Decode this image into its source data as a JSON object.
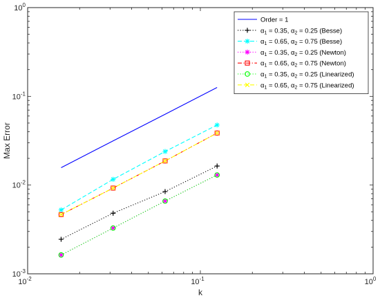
{
  "chart_data": {
    "type": "line",
    "xscale": "log",
    "yscale": "log",
    "xlim": [
      0.01,
      1
    ],
    "ylim": [
      0.001,
      1
    ],
    "xlabel": "k",
    "ylabel": "Max Error",
    "xticks": [
      {
        "base": "10",
        "exp": "-2"
      },
      {
        "base": "10",
        "exp": "-1"
      },
      {
        "base": "10",
        "exp": "0"
      }
    ],
    "yticks": [
      {
        "base": "10",
        "exp": "-3"
      },
      {
        "base": "10",
        "exp": "-2"
      },
      {
        "base": "10",
        "exp": "-1"
      },
      {
        "base": "10",
        "exp": "0"
      }
    ],
    "grid": false,
    "legend_position": "top-right",
    "x": [
      0.015625,
      0.03125,
      0.0625,
      0.125
    ],
    "series": [
      {
        "name": "Order = 1",
        "label": {
          "plain": "Order = 1"
        },
        "values": [
          0.0157,
          0.0315,
          0.0629,
          0.126
        ],
        "color": "#0000ff",
        "dash": "solid",
        "marker": "none"
      },
      {
        "name": "α1 = 0.35, α2 = 0.25 (Besse)",
        "label": {
          "sym1": "α",
          "sub1": "1",
          "mid": " = 0.35,  ",
          "sym2": "α",
          "sub2": "2",
          "tail": " = 0.25 (Besse)"
        },
        "values": [
          0.00245,
          0.00482,
          0.00845,
          0.0164
        ],
        "color": "#000000",
        "dash": "dotted",
        "marker": "plus"
      },
      {
        "name": "α1 = 0.65, α2 = 0.75 (Besse)",
        "label": {
          "sym1": "α",
          "sub1": "1",
          "mid": " = 0.65,  ",
          "sym2": "α",
          "sub2": "2",
          "tail": " = 0.75 (Besse)"
        },
        "values": [
          0.00525,
          0.0116,
          0.0239,
          0.0475
        ],
        "color": "#00ffff",
        "dash": "dashed",
        "marker": "asterisk"
      },
      {
        "name": "α1 = 0.35, α2 = 0.25 (Newton)",
        "label": {
          "sym1": "α",
          "sub1": "1",
          "mid": " = 0.35,  ",
          "sym2": "α",
          "sub2": "2",
          "tail": " = 0.25 (Newton)"
        },
        "values": [
          0.00163,
          0.00328,
          0.0066,
          0.013
        ],
        "color": "#ff00ff",
        "dash": "dotted",
        "marker": "asterisk"
      },
      {
        "name": "α1 = 0.65, α2 = 0.75 (Newton)",
        "label": {
          "sym1": "α",
          "sub1": "1",
          "mid": " = 0.65,  ",
          "sym2": "α",
          "sub2": "2",
          "tail": " = 0.75 (Newton)"
        },
        "values": [
          0.00465,
          0.00925,
          0.0187,
          0.0386
        ],
        "color": "#ff0000",
        "dash": "dashdot",
        "marker": "square"
      },
      {
        "name": "α1 = 0.35, α2 = 0.25 (Linearized)",
        "label": {
          "sym1": "α",
          "sub1": "1",
          "mid": " = 0.35,  ",
          "sym2": "α",
          "sub2": "2",
          "tail": " = 0.25 (Linearized)"
        },
        "values": [
          0.00163,
          0.00328,
          0.0066,
          0.013
        ],
        "color": "#00ff00",
        "dash": "dotted",
        "marker": "circle"
      },
      {
        "name": "α1 = 0.65, α2 = 0.75 (Linearized)",
        "label": {
          "sym1": "α",
          "sub1": "1",
          "mid": " = 0.65,  ",
          "sym2": "α",
          "sub2": "2",
          "tail": " = 0.75 (Linearized)"
        },
        "values": [
          0.00465,
          0.00925,
          0.0187,
          0.0386
        ],
        "color": "#ffff00",
        "dash": "dashed",
        "marker": "x"
      }
    ]
  }
}
